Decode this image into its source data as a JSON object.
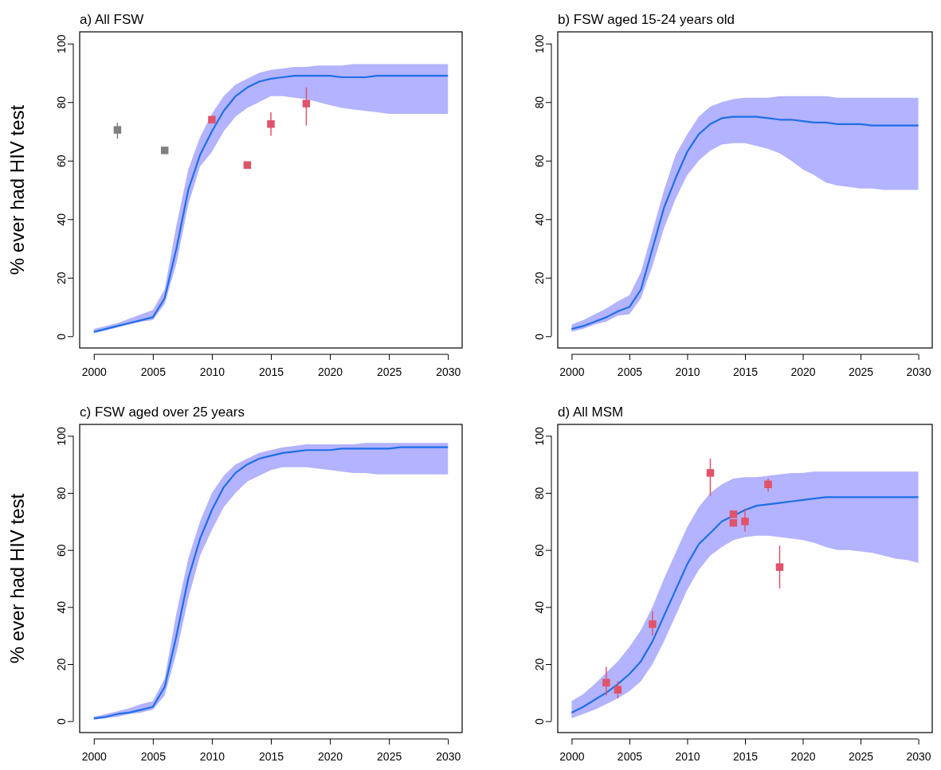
{
  "chart_data": [
    {
      "type": "line",
      "title": "a) All FSW",
      "ylabel": "% ever had HIV test",
      "xlim": [
        1998.8,
        2031.2
      ],
      "ylim": [
        -4,
        104
      ],
      "xticks": [
        2000,
        2005,
        2010,
        2015,
        2020,
        2025,
        2030
      ],
      "yticks": [
        0,
        20,
        40,
        60,
        80,
        100
      ],
      "grid": false,
      "series": [
        {
          "color": "#1f6fe8",
          "marker": "none",
          "line_style": "solid",
          "x": [
            2000,
            2001,
            2002,
            2003,
            2004,
            2005,
            2006,
            2007,
            2008,
            2009,
            2010,
            2011,
            2012,
            2013,
            2014,
            2015,
            2016,
            2017,
            2018,
            2019,
            2020,
            2021,
            2022,
            2023,
            2024,
            2025,
            2026,
            2027,
            2028,
            2029,
            2030
          ],
          "values": [
            1.5,
            2.5,
            3.5,
            4.5,
            5.5,
            6.5,
            13,
            30,
            50,
            62,
            70,
            77,
            82,
            85,
            87,
            88,
            88.5,
            89,
            89,
            89,
            89,
            88.5,
            88.5,
            88.5,
            89,
            89,
            89,
            89,
            89,
            89,
            89
          ],
          "lower": [
            1,
            2,
            3,
            4,
            5,
            5.5,
            11,
            25,
            45,
            58,
            63,
            70,
            75,
            78,
            80,
            82,
            82,
            81.5,
            81,
            80,
            79,
            78,
            77.5,
            77,
            76.5,
            76,
            76,
            76,
            76,
            76,
            76
          ],
          "upper": [
            2.5,
            3.5,
            4.5,
            6,
            7.5,
            9,
            16,
            38,
            57,
            68,
            76,
            82,
            86,
            88,
            90,
            91,
            91.5,
            92,
            92,
            92.5,
            92.5,
            92.5,
            93,
            93,
            93,
            93,
            93,
            93,
            93,
            93,
            93
          ]
        },
        {
          "type": "scatter",
          "color": "#808080",
          "marker": "square",
          "x": [
            2002,
            2006
          ],
          "values": [
            70.5,
            63.5
          ],
          "errors": [
            [
              67.5,
              73
            ],
            null
          ]
        },
        {
          "type": "scatter",
          "color": "#df536b",
          "marker": "square",
          "x": [
            2010,
            2013,
            2015,
            2018
          ],
          "values": [
            74,
            58.5,
            72.5,
            79.5
          ],
          "errors": [
            null,
            null,
            [
              68.5,
              76.5
            ],
            [
              72,
              85
            ]
          ]
        }
      ]
    },
    {
      "type": "line",
      "title": "b) FSW aged 15-24 years old",
      "xlim": [
        1998.8,
        2031.2
      ],
      "ylim": [
        -4,
        104
      ],
      "xticks": [
        2000,
        2005,
        2010,
        2015,
        2020,
        2025,
        2030
      ],
      "yticks": [
        0,
        20,
        40,
        60,
        80,
        100
      ],
      "grid": false,
      "series": [
        {
          "color": "#1f6fe8",
          "marker": "none",
          "line_style": "solid",
          "x": [
            2000,
            2001,
            2002,
            2003,
            2004,
            2005,
            2006,
            2007,
            2008,
            2009,
            2010,
            2011,
            2012,
            2013,
            2014,
            2015,
            2016,
            2017,
            2018,
            2019,
            2020,
            2021,
            2022,
            2023,
            2024,
            2025,
            2026,
            2027,
            2028,
            2029,
            2030
          ],
          "values": [
            2.5,
            3.5,
            5,
            6.5,
            8.5,
            10,
            16,
            30,
            44,
            54,
            63,
            69,
            72.5,
            74.5,
            75,
            75,
            75,
            74.5,
            74,
            74,
            73.5,
            73,
            73,
            72.5,
            72.5,
            72.5,
            72,
            72,
            72,
            72,
            72
          ],
          "lower": [
            1.5,
            2.5,
            4,
            5,
            7,
            7.5,
            13,
            24,
            37,
            47,
            55,
            60,
            63.5,
            65.5,
            66,
            66,
            65,
            64,
            62.5,
            60,
            57,
            55,
            52.5,
            51.5,
            51,
            50.5,
            50.5,
            50,
            50,
            50,
            50
          ],
          "upper": [
            4,
            5.5,
            7.5,
            9.5,
            12,
            14,
            22,
            36,
            50,
            62,
            69,
            75,
            78.5,
            80,
            81,
            81.5,
            81.5,
            81.5,
            82,
            82,
            82,
            82,
            82,
            81.5,
            81.5,
            81.5,
            81.5,
            81.5,
            81.5,
            81.5,
            81.5
          ]
        }
      ]
    },
    {
      "type": "line",
      "title": "c) FSW aged over 25 years",
      "ylabel": "% ever had HIV test",
      "xlim": [
        1998.8,
        2031.2
      ],
      "ylim": [
        -4,
        104
      ],
      "xticks": [
        2000,
        2005,
        2010,
        2015,
        2020,
        2025,
        2030
      ],
      "yticks": [
        0,
        20,
        40,
        60,
        80,
        100
      ],
      "grid": false,
      "series": [
        {
          "color": "#1f6fe8",
          "marker": "none",
          "line_style": "solid",
          "x": [
            2000,
            2001,
            2002,
            2003,
            2004,
            2005,
            2006,
            2007,
            2008,
            2009,
            2010,
            2011,
            2012,
            2013,
            2014,
            2015,
            2016,
            2017,
            2018,
            2019,
            2020,
            2021,
            2022,
            2023,
            2024,
            2025,
            2026,
            2027,
            2028,
            2029,
            2030
          ],
          "values": [
            1,
            1.5,
            2.5,
            3,
            4,
            5,
            12,
            30,
            50,
            64,
            74,
            82,
            87,
            90,
            92,
            93,
            94,
            94.5,
            95,
            95,
            95,
            95.5,
            95.5,
            95.5,
            95.5,
            95.5,
            96,
            96,
            96,
            96,
            96
          ],
          "lower": [
            0.5,
            1,
            1.5,
            2.5,
            3,
            4,
            9,
            24,
            43,
            58,
            67,
            75,
            80,
            84,
            86,
            88,
            89,
            89,
            89,
            88.5,
            88,
            87.5,
            87,
            87,
            86.5,
            86.5,
            86.5,
            86.5,
            86.5,
            86.5,
            86.5
          ],
          "upper": [
            1.5,
            2.5,
            3.5,
            4.5,
            6,
            7,
            15,
            38,
            57,
            70,
            80,
            86,
            90,
            92,
            94,
            95,
            96,
            96.5,
            97,
            97,
            97,
            97,
            97,
            97.5,
            97.5,
            97.5,
            97.5,
            97.5,
            97.5,
            97.5,
            97.5
          ]
        }
      ]
    },
    {
      "type": "line",
      "title": "d) All MSM",
      "xlim": [
        1998.8,
        2031.2
      ],
      "ylim": [
        -4,
        104
      ],
      "xticks": [
        2000,
        2005,
        2010,
        2015,
        2020,
        2025,
        2030
      ],
      "yticks": [
        0,
        20,
        40,
        60,
        80,
        100
      ],
      "grid": false,
      "series": [
        {
          "color": "#1f6fe8",
          "marker": "none",
          "line_style": "solid",
          "x": [
            2000,
            2001,
            2002,
            2003,
            2004,
            2005,
            2006,
            2007,
            2008,
            2009,
            2010,
            2011,
            2012,
            2013,
            2014,
            2015,
            2016,
            2017,
            2018,
            2019,
            2020,
            2021,
            2022,
            2023,
            2024,
            2025,
            2026,
            2027,
            2028,
            2029,
            2030
          ],
          "values": [
            3,
            5,
            7.5,
            10,
            13,
            16.5,
            21,
            28,
            37,
            46,
            55,
            62,
            66,
            70,
            72,
            74,
            75.5,
            76,
            76.5,
            77,
            77.5,
            78,
            78.5,
            78.5,
            78.5,
            78.5,
            78.5,
            78.5,
            78.5,
            78.5,
            78.5
          ],
          "lower": [
            1,
            2.5,
            4,
            6,
            8,
            10.5,
            14,
            20,
            28,
            37,
            46,
            53,
            58,
            61,
            63.5,
            64.5,
            65,
            65,
            64.5,
            64,
            63.5,
            62.5,
            61,
            60,
            60,
            59.5,
            59,
            58,
            57,
            56.5,
            55.5
          ],
          "upper": [
            7,
            9.5,
            13,
            17,
            21,
            26,
            32,
            40,
            50,
            59,
            68,
            75,
            80,
            83,
            85,
            85.5,
            85.5,
            86,
            86.5,
            87,
            87,
            87.5,
            87.5,
            87.5,
            87.5,
            87.5,
            87.5,
            87.5,
            87.5,
            87.5,
            87.5
          ]
        },
        {
          "type": "scatter",
          "color": "#df536b",
          "marker": "square",
          "x": [
            2003,
            2004,
            2007,
            2012,
            2014,
            2014,
            2015,
            2017,
            2018
          ],
          "values": [
            13.5,
            11,
            34,
            87,
            72.5,
            69.5,
            70,
            83,
            54
          ],
          "errors": [
            [
              9,
              19
            ],
            [
              8,
              14
            ],
            [
              30,
              38.5
            ],
            [
              79,
              92
            ],
            null,
            null,
            [
              66.5,
              74.5
            ],
            [
              80.5,
              85
            ],
            [
              46.5,
              61.5
            ]
          ]
        }
      ]
    }
  ]
}
